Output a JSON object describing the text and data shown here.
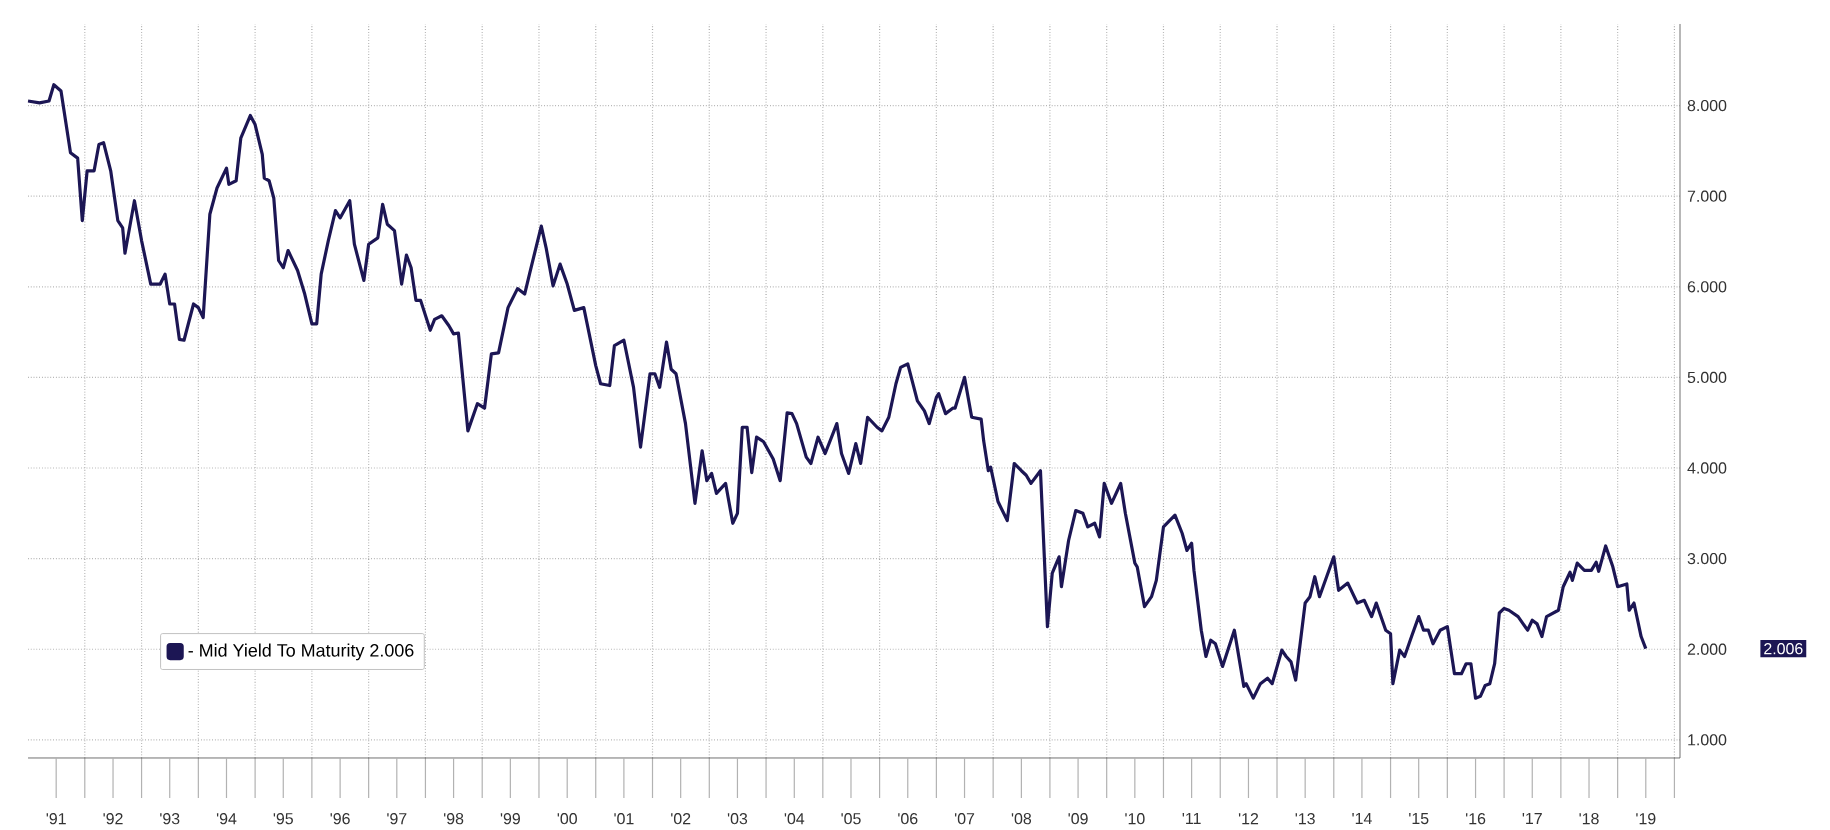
{
  "chart_data": {
    "type": "line",
    "xlim": [
      "1991-01-01",
      "2020-02-06"
    ],
    "ylim": [
      0.8,
      8.9
    ],
    "xticks": [
      {
        "value": "1992-01-01",
        "label": null
      },
      {
        "value": "1993-01-01",
        "label": null
      },
      {
        "value": "1994-01-01",
        "label": null
      },
      {
        "value": "1995-01-01",
        "label": null
      },
      {
        "value": "1996-01-01",
        "label": null
      },
      {
        "value": "1997-01-01",
        "label": null
      },
      {
        "value": "1998-01-01",
        "label": null
      },
      {
        "value": "1999-01-01",
        "label": null
      },
      {
        "value": "2000-01-01",
        "label": null
      },
      {
        "value": "2001-01-01",
        "label": null
      },
      {
        "value": "2002-01-01",
        "label": null
      },
      {
        "value": "2003-01-01",
        "label": null
      },
      {
        "value": "2004-01-01",
        "label": null
      },
      {
        "value": "2005-01-01",
        "label": null
      },
      {
        "value": "2006-01-01",
        "label": null
      },
      {
        "value": "2007-01-01",
        "label": null
      },
      {
        "value": "2008-01-01",
        "label": null
      },
      {
        "value": "2009-01-01",
        "label": null
      },
      {
        "value": "2010-01-01",
        "label": null
      },
      {
        "value": "2011-01-01",
        "label": null
      },
      {
        "value": "2012-01-01",
        "label": null
      },
      {
        "value": "2013-01-01",
        "label": null
      },
      {
        "value": "2014-01-01",
        "label": null
      },
      {
        "value": "2015-01-01",
        "label": null
      },
      {
        "value": "2016-01-01",
        "label": null
      },
      {
        "value": "2017-01-01",
        "label": null
      },
      {
        "value": "2018-01-01",
        "label": null
      },
      {
        "value": "2019-01-01",
        "label": null
      },
      {
        "value": "2020-01-01",
        "label": null
      },
      {
        "value": "1991-07-01",
        "label": "'91"
      },
      {
        "value": "1992-07-01",
        "label": "'92"
      },
      {
        "value": "1993-07-01",
        "label": "'93"
      },
      {
        "value": "1994-07-01",
        "label": "'94"
      },
      {
        "value": "1995-07-01",
        "label": "'95"
      },
      {
        "value": "1996-07-01",
        "label": "'96"
      },
      {
        "value": "1997-07-01",
        "label": "'97"
      },
      {
        "value": "1998-07-01",
        "label": "'98"
      },
      {
        "value": "1999-07-01",
        "label": "'99"
      },
      {
        "value": "2000-07-01",
        "label": "'00"
      },
      {
        "value": "2001-07-01",
        "label": "'01"
      },
      {
        "value": "2002-07-01",
        "label": "'02"
      },
      {
        "value": "2003-07-01",
        "label": "'03"
      },
      {
        "value": "2004-07-01",
        "label": "'04"
      },
      {
        "value": "2005-07-01",
        "label": "'05"
      },
      {
        "value": "2006-07-01",
        "label": "'06"
      },
      {
        "value": "2007-07-01",
        "label": "'07"
      },
      {
        "value": "2008-07-01",
        "label": "'08"
      },
      {
        "value": "2009-07-01",
        "label": "'09"
      },
      {
        "value": "2010-07-01",
        "label": "'10"
      },
      {
        "value": "2011-07-01",
        "label": "'11"
      },
      {
        "value": "2012-07-01",
        "label": "'12"
      },
      {
        "value": "2013-07-01",
        "label": "'13"
      },
      {
        "value": "2014-07-01",
        "label": "'14"
      },
      {
        "value": "2015-07-01",
        "label": "'15"
      },
      {
        "value": "2016-07-01",
        "label": "'16"
      },
      {
        "value": "2017-07-01",
        "label": "'17"
      },
      {
        "value": "2018-07-01",
        "label": "'18"
      },
      {
        "value": "2019-07-01",
        "label": "'19"
      }
    ],
    "yticks": [
      {
        "value": 1,
        "label": "1.000"
      },
      {
        "value": 2,
        "label": "2.000"
      },
      {
        "value": 3,
        "label": "3.000"
      },
      {
        "value": 4,
        "label": "4.000"
      },
      {
        "value": 5,
        "label": "5.000"
      },
      {
        "value": 6,
        "label": "6.000"
      },
      {
        "value": 7,
        "label": "7.000"
      },
      {
        "value": 8,
        "label": "8.000"
      }
    ],
    "grid": true,
    "legend": "bottom left",
    "line_style": "solid",
    "annotations": [
      "2.006"
    ],
    "series": [
      {
        "name": "- Mid Yield To Maturity 2.006",
        "color": "#1c1654",
        "x": [
          "1991-01-01",
          "1991-03-16",
          "1991-05-16",
          "1991-06-16",
          "1991-08-01",
          "1991-10-01",
          "1991-11-16",
          "1991-12-16",
          "1992-01-16",
          "1992-03-01",
          "1992-04-01",
          "1992-05-01",
          "1992-06-16",
          "1992-08-01",
          "1992-09-01",
          "1992-09-16",
          "1992-11-16",
          "1993-01-01",
          "1993-03-01",
          "1993-05-01",
          "1993-06-01",
          "1993-07-01",
          "1993-08-01",
          "1993-09-01",
          "1993-10-01",
          "1993-12-01",
          "1994-01-01",
          "1994-02-01",
          "1994-03-16",
          "1994-05-01",
          "1994-07-01",
          "1994-07-16",
          "1994-09-01",
          "1994-10-01",
          "1994-12-01",
          "1995-01-01",
          "1995-02-16",
          "1995-03-01",
          "1995-04-01",
          "1995-05-01",
          "1995-06-01",
          "1995-07-01",
          "1995-08-01",
          "1995-10-01",
          "1995-11-16",
          "1996-01-01",
          "1996-02-01",
          "1996-03-01",
          "1996-04-16",
          "1996-06-01",
          "1996-07-01",
          "1996-09-01",
          "1996-10-01",
          "1996-12-01",
          "1997-01-01",
          "1997-03-01",
          "1997-04-01",
          "1997-05-01",
          "1997-06-16",
          "1997-08-01",
          "1997-09-01",
          "1997-10-01",
          "1997-11-01",
          "1997-12-01",
          "1998-02-01",
          "1998-03-01",
          "1998-04-16",
          "1998-06-01",
          "1998-07-01",
          "1998-08-01",
          "1998-10-01",
          "1998-12-01",
          "1999-01-16",
          "1999-03-01",
          "1999-04-16",
          "1999-06-16",
          "1999-08-16",
          "1999-10-01",
          "1999-11-01",
          "2000-01-16",
          "2000-02-16",
          "2000-04-01",
          "2000-05-16",
          "2000-07-01",
          "2000-08-16",
          "2000-10-16",
          "2001-01-01",
          "2001-02-01",
          "2001-04-01",
          "2001-05-01",
          "2001-07-01",
          "2001-09-01",
          "2001-10-16",
          "2001-12-16",
          "2002-01-16",
          "2002-02-16",
          "2002-04-01",
          "2002-05-01",
          "2002-06-01",
          "2002-08-01",
          "2002-10-01",
          "2002-11-16",
          "2002-12-16",
          "2003-01-16",
          "2003-02-16",
          "2003-04-16",
          "2003-06-01",
          "2003-07-01",
          "2003-08-01",
          "2003-09-01",
          "2003-10-01",
          "2003-11-01",
          "2003-12-16",
          "2004-02-16",
          "2004-04-01",
          "2004-05-16",
          "2004-06-16",
          "2004-07-16",
          "2004-09-16",
          "2004-10-16",
          "2004-12-01",
          "2005-01-16",
          "2005-04-01",
          "2005-05-01",
          "2005-06-16",
          "2005-08-01",
          "2005-09-01",
          "2005-10-16",
          "2005-12-16",
          "2006-01-16",
          "2006-03-01",
          "2006-04-16",
          "2006-05-16",
          "2006-07-01",
          "2006-09-01",
          "2006-10-16",
          "2006-11-16",
          "2007-01-01",
          "2007-01-16",
          "2007-03-01",
          "2007-04-16",
          "2007-05-01",
          "2007-07-01",
          "2007-08-16",
          "2007-10-16",
          "2007-11-01",
          "2007-12-01",
          "2007-12-16",
          "2008-02-01",
          "2008-04-01",
          "2008-05-16",
          "2008-07-01",
          "2008-08-01",
          "2008-09-01",
          "2008-11-01",
          "2008-12-16",
          "2009-01-16",
          "2009-03-01",
          "2009-03-16",
          "2009-05-01",
          "2009-06-16",
          "2009-08-01",
          "2009-09-01",
          "2009-10-16",
          "2009-11-16",
          "2009-12-16",
          "2010-02-01",
          "2010-04-01",
          "2010-05-01",
          "2010-07-01",
          "2010-07-16",
          "2010-09-01",
          "2010-10-16",
          "2010-11-16",
          "2011-01-01",
          "2011-03-16",
          "2011-05-01",
          "2011-06-01",
          "2011-07-01",
          "2011-07-16",
          "2011-09-01",
          "2011-10-01",
          "2011-11-01",
          "2011-12-01",
          "2012-01-16",
          "2012-04-01",
          "2012-06-01",
          "2012-06-16",
          "2012-08-01",
          "2012-09-16",
          "2012-11-01",
          "2012-12-01",
          "2013-02-01",
          "2013-03-01",
          "2013-04-01",
          "2013-05-01",
          "2013-07-01",
          "2013-08-01",
          "2013-09-01",
          "2013-10-01",
          "2014-01-01",
          "2014-02-01",
          "2014-04-01",
          "2014-06-01",
          "2014-07-16",
          "2014-09-01",
          "2014-10-01",
          "2014-12-01",
          "2015-01-01",
          "2015-01-16",
          "2015-03-01",
          "2015-04-01",
          "2015-05-16",
          "2015-07-01",
          "2015-08-01",
          "2015-09-01",
          "2015-10-01",
          "2015-11-16",
          "2016-01-01",
          "2016-02-16",
          "2016-04-01",
          "2016-05-01",
          "2016-06-01",
          "2016-07-01",
          "2016-08-01",
          "2016-09-01",
          "2016-10-01",
          "2016-11-01",
          "2016-12-01",
          "2017-01-01",
          "2017-02-01",
          "2017-04-01",
          "2017-06-01",
          "2017-07-01",
          "2017-08-01",
          "2017-09-01",
          "2017-10-01",
          "2017-12-16",
          "2018-01-16",
          "2018-03-01",
          "2018-03-16",
          "2018-04-16",
          "2018-06-01",
          "2018-07-16",
          "2018-08-16",
          "2018-09-01",
          "2018-10-16",
          "2018-12-01",
          "2019-01-01",
          "2019-03-01",
          "2019-03-16",
          "2019-04-16",
          "2019-06-01",
          "2019-07-01"
        ],
        "values": [
          8.05,
          8.03,
          8.05,
          8.23,
          8.16,
          7.48,
          7.42,
          6.73,
          7.28,
          7.28,
          7.57,
          7.59,
          7.28,
          6.73,
          6.65,
          6.37,
          6.95,
          6.51,
          6.03,
          6.03,
          6.14,
          5.81,
          5.81,
          5.42,
          5.41,
          5.81,
          5.77,
          5.66,
          6.8,
          7.09,
          7.31,
          7.13,
          7.17,
          7.64,
          7.89,
          7.79,
          7.46,
          7.2,
          7.17,
          6.98,
          6.29,
          6.21,
          6.4,
          6.18,
          5.92,
          5.59,
          5.59,
          6.14,
          6.51,
          6.84,
          6.76,
          6.95,
          6.47,
          6.07,
          6.47,
          6.54,
          6.91,
          6.69,
          6.62,
          6.03,
          6.35,
          6.21,
          5.85,
          5.85,
          5.52,
          5.64,
          5.68,
          5.57,
          5.48,
          5.49,
          4.41,
          4.71,
          4.66,
          5.26,
          5.27,
          5.77,
          5.98,
          5.92,
          6.14,
          6.67,
          6.43,
          6.01,
          6.25,
          6.03,
          5.74,
          5.77,
          5.13,
          4.93,
          4.91,
          5.35,
          5.41,
          4.89,
          4.23,
          5.04,
          5.04,
          4.89,
          5.39,
          5.09,
          5.04,
          4.49,
          3.61,
          4.19,
          3.86,
          3.94,
          3.72,
          3.83,
          3.39,
          3.5,
          4.45,
          4.45,
          3.95,
          4.34,
          4.29,
          4.1,
          3.86,
          4.61,
          4.6,
          4.49,
          4.12,
          4.05,
          4.34,
          4.16,
          4.49,
          4.16,
          3.94,
          4.27,
          4.05,
          4.56,
          4.45,
          4.41,
          4.56,
          4.93,
          5.11,
          5.15,
          4.74,
          4.63,
          4.49,
          4.78,
          4.82,
          4.6,
          4.66,
          4.66,
          5.0,
          4.56,
          4.54,
          4.3,
          3.97,
          4.01,
          3.63,
          3.42,
          4.05,
          3.97,
          3.92,
          3.83,
          3.97,
          2.25,
          2.84,
          3.02,
          2.69,
          3.2,
          3.53,
          3.5,
          3.35,
          3.39,
          3.24,
          3.83,
          3.61,
          3.83,
          3.5,
          2.95,
          2.91,
          2.47,
          2.58,
          2.76,
          3.35,
          3.48,
          3.28,
          3.09,
          3.17,
          2.87,
          2.21,
          1.92,
          2.1,
          2.06,
          1.81,
          2.21,
          1.59,
          1.62,
          1.46,
          1.62,
          1.68,
          1.62,
          1.99,
          1.92,
          1.86,
          1.66,
          2.51,
          2.58,
          2.8,
          2.58,
          3.02,
          2.65,
          2.73,
          2.51,
          2.54,
          2.36,
          2.51,
          2.21,
          2.17,
          1.62,
          1.99,
          1.92,
          2.14,
          2.36,
          2.21,
          2.21,
          2.06,
          2.21,
          2.25,
          1.73,
          1.73,
          1.84,
          1.84,
          1.46,
          1.48,
          1.6,
          1.62,
          1.84,
          2.4,
          2.45,
          2.43,
          2.36,
          2.21,
          2.32,
          2.28,
          2.14,
          2.36,
          2.43,
          2.69,
          2.85,
          2.76,
          2.95,
          2.87,
          2.87,
          2.96,
          2.86,
          3.14,
          2.91,
          2.69,
          2.72,
          2.43,
          2.51,
          2.14,
          2.006
        ]
      }
    ]
  }
}
